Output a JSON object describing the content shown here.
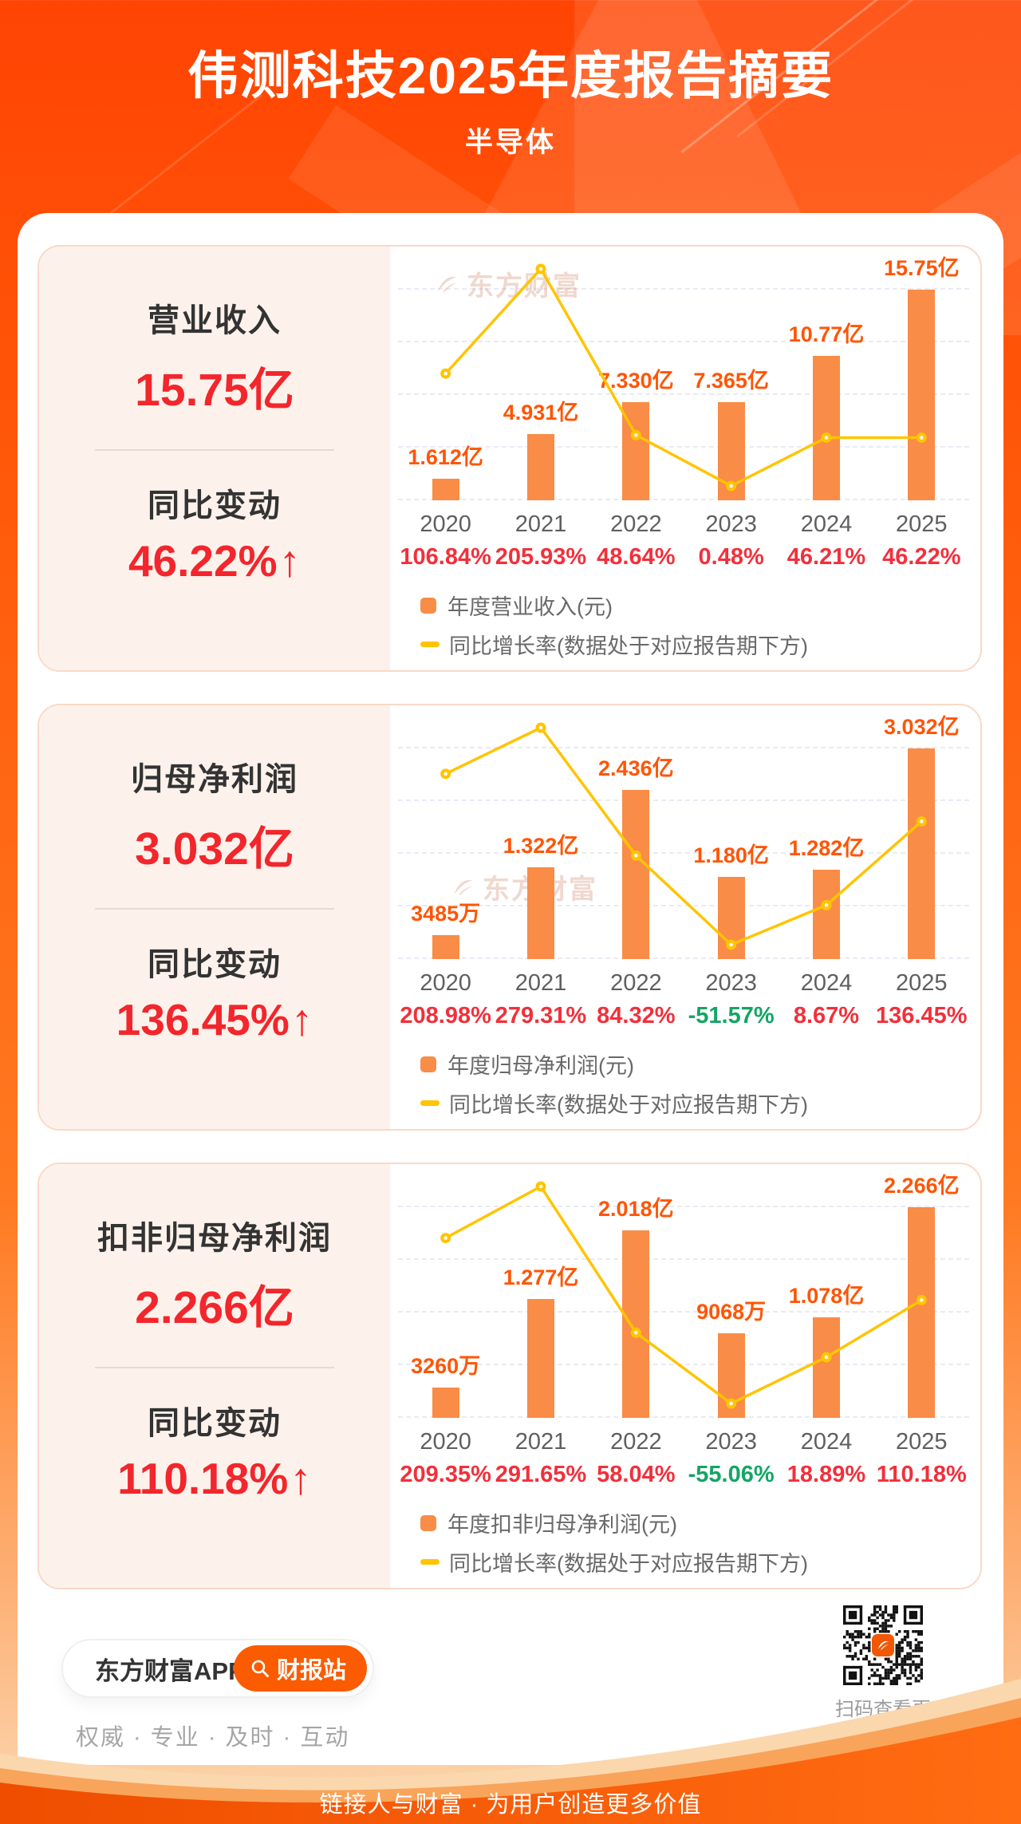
{
  "header": {
    "title": "伟测科技2025年度报告摘要",
    "subtitle": "半导体"
  },
  "watermark_text": "东方财富",
  "cards": [
    {
      "metric_label": "营业收入",
      "metric_value": "15.75亿",
      "change_label": "同比变动",
      "change_value": "46.22%",
      "arrow": "↑"
    },
    {
      "metric_label": "归母净利润",
      "metric_value": "3.032亿",
      "change_label": "同比变动",
      "change_value": "136.45%",
      "arrow": "↑"
    },
    {
      "metric_label": "扣非归母净利润",
      "metric_value": "2.266亿",
      "change_label": "同比变动",
      "change_value": "110.18%",
      "arrow": "↑"
    }
  ],
  "chart_data": [
    {
      "type": "bar",
      "title": "年度营业收入",
      "categories": [
        "2020",
        "2021",
        "2022",
        "2023",
        "2024",
        "2025"
      ],
      "bar_series": {
        "name": "年度营业收入(元)",
        "unit": "亿元",
        "values": [
          1.612,
          4.931,
          7.33,
          7.365,
          10.77,
          15.75
        ],
        "value_labels": [
          "1.612亿",
          "4.931亿",
          "7.330亿",
          "7.365亿",
          "10.77亿",
          "15.75亿"
        ]
      },
      "line_series": {
        "name": "同比增长率(数据处于对应报告期下方)",
        "unit": "%",
        "values": [
          106.84,
          205.93,
          48.64,
          0.48,
          46.21,
          46.22
        ],
        "labels": [
          "106.84%",
          "205.93%",
          "48.64%",
          "0.48%",
          "46.21%",
          "46.22%"
        ]
      },
      "legend": [
        "年度营业收入(元)",
        "同比增长率(数据处于对应报告期下方)"
      ],
      "grid": true,
      "watermark_position": "top"
    },
    {
      "type": "bar",
      "title": "年度归母净利润",
      "categories": [
        "2020",
        "2021",
        "2022",
        "2023",
        "2024",
        "2025"
      ],
      "bar_series": {
        "name": "年度归母净利润(元)",
        "unit": "亿元",
        "values": [
          0.3485,
          1.322,
          2.436,
          1.18,
          1.282,
          3.032
        ],
        "value_labels": [
          "3485万",
          "1.322亿",
          "2.436亿",
          "1.180亿",
          "1.282亿",
          "3.032亿"
        ]
      },
      "line_series": {
        "name": "同比增长率(数据处于对应报告期下方)",
        "unit": "%",
        "values": [
          208.98,
          279.31,
          84.32,
          -51.57,
          8.67,
          136.45
        ],
        "labels": [
          "208.98%",
          "279.31%",
          "84.32%",
          "-51.57%",
          "8.67%",
          "136.45%"
        ]
      },
      "legend": [
        "年度归母净利润(元)",
        "同比增长率(数据处于对应报告期下方)"
      ],
      "grid": true,
      "watermark_position": "bottom"
    },
    {
      "type": "bar",
      "title": "年度扣非归母净利润",
      "categories": [
        "2020",
        "2021",
        "2022",
        "2023",
        "2024",
        "2025"
      ],
      "bar_series": {
        "name": "年度扣非归母净利润(元)",
        "unit": "亿元",
        "values": [
          0.326,
          1.277,
          2.018,
          0.9068,
          1.078,
          2.266
        ],
        "value_labels": [
          "3260万",
          "1.277亿",
          "2.018亿",
          "9068万",
          "1.078亿",
          "2.266亿"
        ]
      },
      "line_series": {
        "name": "同比增长率(数据处于对应报告期下方)",
        "unit": "%",
        "values": [
          209.35,
          291.65,
          58.04,
          -55.06,
          18.89,
          110.18
        ],
        "labels": [
          "209.35%",
          "291.65%",
          "58.04%",
          "-55.06%",
          "18.89%",
          "110.18%"
        ]
      },
      "legend": [
        "年度扣非归母净利润(元)",
        "同比增长率(数据处于对应报告期下方)"
      ],
      "grid": true,
      "watermark_position": "none"
    }
  ],
  "bottom": {
    "app_label": "东方财富APP",
    "report_button": "财报站",
    "tagline": "权威 · 专业 · 及时 · 互动",
    "qr_caption": "扫码查看更多"
  },
  "footer": {
    "slogan": "链接人与财富 · 为用户创造更多价值"
  },
  "colors": {
    "bar": "#F98C47",
    "line": "#FFC402",
    "bar_value_label": "#FF5505",
    "growth_positive": "#F2303B",
    "growth_negative": "#14A566",
    "metric_red": "#F2262C",
    "header_orange": "#FF5A0A",
    "card_bg": "#FDF2EB",
    "card_border": "#F9D9C6",
    "button_orange": "#FB5B01"
  }
}
